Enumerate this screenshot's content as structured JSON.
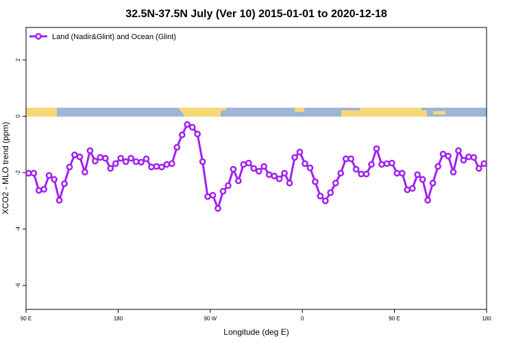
{
  "chart_data": {
    "type": "line",
    "title": "32.5N-37.5N July (Ver 10)   2015-01-01 to 2020-12-18",
    "x_label": "Longitude (deg E)",
    "y_label": "XCO2 - MLO trend (ppm)",
    "x": [
      92.5,
      97.5,
      102.5,
      107.5,
      112.5,
      117.5,
      122.5,
      127.5,
      132.5,
      137.5,
      142.5,
      147.5,
      152.5,
      157.5,
      162.5,
      167.5,
      172.5,
      177.5,
      182.5,
      187.5,
      192.5,
      197.5,
      202.5,
      207.5,
      212.5,
      217.5,
      222.5,
      227.5,
      232.5,
      237.5,
      242.5,
      247.5,
      252.5,
      257.5,
      262.5,
      267.5,
      272.5,
      277.5,
      282.5,
      287.5,
      292.5,
      297.5,
      302.5,
      307.5,
      312.5,
      317.5,
      322.5,
      327.5,
      332.5,
      337.5,
      342.5,
      347.5,
      352.5,
      357.5,
      362.5,
      367.5,
      372.5,
      377.5,
      382.5,
      387.5,
      392.5,
      397.5,
      402.5,
      407.5,
      412.5,
      417.5,
      422.5,
      427.5,
      432.5,
      437.5,
      442.5,
      447.5,
      452.5,
      457.5,
      462.5,
      467.5,
      472.5,
      477.5,
      482.5,
      487.5,
      492.5,
      497.5,
      502.5,
      507.5,
      512.5,
      517.5,
      522.5,
      527.5,
      532.5,
      537.5
    ],
    "series": [
      {
        "name": "Land (Nadir&Glint) and Ocean (Glint)",
        "color": "#a020f0",
        "values": [
          -2.02,
          -2.02,
          -2.63,
          -2.59,
          -2.1,
          -2.24,
          -2.98,
          -2.39,
          -1.8,
          -1.37,
          -1.44,
          -1.98,
          -1.22,
          -1.59,
          -1.46,
          -1.49,
          -1.85,
          -1.68,
          -1.49,
          -1.61,
          -1.49,
          -1.61,
          -1.63,
          -1.51,
          -1.8,
          -1.78,
          -1.8,
          -1.71,
          -1.68,
          -1.1,
          -0.66,
          -0.29,
          -0.39,
          -0.63,
          -1.61,
          -2.85,
          -2.8,
          -3.27,
          -2.66,
          -2.46,
          -1.88,
          -2.29,
          -1.71,
          -1.66,
          -1.85,
          -1.95,
          -1.78,
          -2.07,
          -2.12,
          -2.22,
          -2.02,
          -2.37,
          -1.46,
          -1.27,
          -1.68,
          -1.83,
          -2.32,
          -2.83,
          -3.0,
          -2.71,
          -2.37,
          -2.02,
          -1.51,
          -1.51,
          -1.88,
          -2.05,
          -2.05,
          -1.71,
          -1.15,
          -1.71,
          -1.68,
          -1.66,
          -2.02,
          -2.02,
          -2.61,
          -2.56,
          -2.07,
          -2.24,
          -2.98,
          -2.37,
          -1.78,
          -1.34,
          -1.41,
          -1.98,
          -1.22,
          -1.56,
          -1.44,
          -1.46,
          -1.85,
          -1.68
        ]
      }
    ],
    "xlim": [
      90,
      540
    ],
    "xticks": [
      {
        "value": 90,
        "label": "90 E"
      },
      180,
      {
        "value": 270,
        "label": "90 W"
      },
      {
        "value": 360,
        "label": "0"
      },
      {
        "value": 450,
        "label": "90 E"
      },
      {
        "value": 540,
        "label": "180"
      }
    ],
    "ylim": [
      -6.85,
      3.15
    ],
    "yticks": [
      -6,
      -4,
      -2,
      0,
      2
    ],
    "legend": "top-left"
  }
}
